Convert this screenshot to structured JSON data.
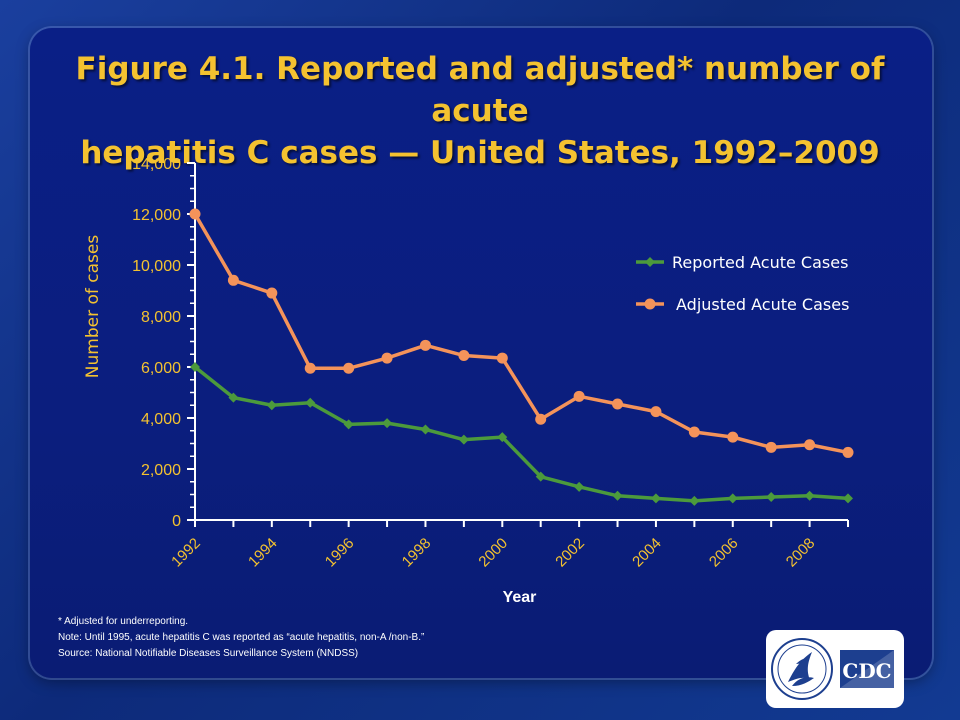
{
  "title": {
    "line1": "Figure 4.1. Reported and adjusted* number of acute",
    "line2": "hepatitis C cases — United States, 1992–2009"
  },
  "footnotes": {
    "adjusted": "* Adjusted for underreporting.",
    "note": "Note: Until 1995, acute hepatitis C was reported as “acute hepatitis, non-A /non-B.”",
    "source": "Source: National Notifiable Diseases Surveillance System (NNDSS)"
  },
  "logo": {
    "text": "CDC",
    "seal_icon": "hhs-eagle-seal-icon"
  },
  "colors": {
    "background": "#0b1e7e",
    "title": "#f4c230",
    "axis": "#ffffff",
    "tick_label": "#f4c230",
    "reported": "#4c9a3c",
    "adjusted": "#f4935a"
  },
  "chart_data": {
    "type": "line",
    "title": "Figure 4.1. Reported and adjusted* number of acute hepatitis C cases — United States, 1992–2009",
    "xlabel": "Year",
    "ylabel": "Number of cases",
    "x": [
      1992,
      1993,
      1994,
      1995,
      1996,
      1997,
      1998,
      1999,
      2000,
      2001,
      2002,
      2003,
      2004,
      2005,
      2006,
      2007,
      2008,
      2009
    ],
    "xticks": [
      "1992",
      "1994",
      "1996",
      "1998",
      "2000",
      "2002",
      "2004",
      "2006",
      "2008"
    ],
    "ylim": [
      0,
      14000
    ],
    "yticks": [
      "0",
      "2,000",
      "4,000",
      "6,000",
      "8,000",
      "10,000",
      "12,000",
      "14,000"
    ],
    "grid": false,
    "legend_position": "right",
    "series": [
      {
        "name": "Reported Acute Cases",
        "color": "#4c9a3c",
        "marker": "diamond",
        "values": [
          6000,
          4800,
          4500,
          4600,
          3750,
          3800,
          3550,
          3150,
          3250,
          1700,
          1300,
          950,
          850,
          750,
          850,
          900,
          950,
          850
        ]
      },
      {
        "name": "Adjusted Acute Cases",
        "color": "#f4935a",
        "marker": "circle",
        "values": [
          12000,
          9400,
          8900,
          5950,
          5950,
          6350,
          6850,
          6450,
          6350,
          3950,
          4850,
          4550,
          4250,
          3450,
          3250,
          2850,
          2950,
          2650
        ]
      }
    ]
  }
}
